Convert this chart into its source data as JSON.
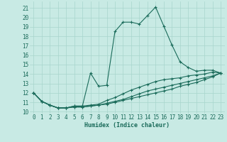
{
  "title": "",
  "xlabel": "Humidex (Indice chaleur)",
  "ylabel": "",
  "background_color": "#c8eae4",
  "grid_color": "#a8d5cc",
  "line_color": "#1a6b5a",
  "x_ticks": [
    0,
    1,
    2,
    3,
    4,
    5,
    6,
    7,
    8,
    9,
    10,
    11,
    12,
    13,
    14,
    15,
    16,
    17,
    18,
    19,
    20,
    21,
    22,
    23
  ],
  "y_ticks": [
    10,
    11,
    12,
    13,
    14,
    15,
    16,
    17,
    18,
    19,
    20,
    21
  ],
  "ylim": [
    9.8,
    21.7
  ],
  "xlim": [
    -0.5,
    23.5
  ],
  "series": [
    {
      "x": [
        0,
        1,
        2,
        3,
        4,
        5,
        6,
        7,
        8,
        9,
        10,
        11,
        12,
        13,
        14,
        15,
        16,
        17,
        18,
        19,
        20,
        21,
        22,
        23
      ],
      "y": [
        12.0,
        11.1,
        10.7,
        10.4,
        10.4,
        10.6,
        10.6,
        14.1,
        12.7,
        12.8,
        18.5,
        19.5,
        19.5,
        19.3,
        20.2,
        21.1,
        19.1,
        17.1,
        15.3,
        14.7,
        14.3,
        14.4,
        14.4,
        14.1
      ]
    },
    {
      "x": [
        0,
        1,
        2,
        3,
        4,
        5,
        6,
        7,
        8,
        9,
        10,
        11,
        12,
        13,
        14,
        15,
        16,
        17,
        18,
        19,
        20,
        21,
        22,
        23
      ],
      "y": [
        12.0,
        11.1,
        10.7,
        10.4,
        10.4,
        10.6,
        10.6,
        10.7,
        10.8,
        11.2,
        11.5,
        11.9,
        12.3,
        12.6,
        12.9,
        13.2,
        13.4,
        13.5,
        13.6,
        13.8,
        13.9,
        14.0,
        14.2,
        14.1
      ]
    },
    {
      "x": [
        0,
        1,
        2,
        3,
        4,
        5,
        6,
        7,
        8,
        9,
        10,
        11,
        12,
        13,
        14,
        15,
        16,
        17,
        18,
        19,
        20,
        21,
        22,
        23
      ],
      "y": [
        12.0,
        11.1,
        10.7,
        10.4,
        10.4,
        10.5,
        10.5,
        10.6,
        10.7,
        10.9,
        11.1,
        11.3,
        11.6,
        11.9,
        12.2,
        12.4,
        12.6,
        12.8,
        13.0,
        13.2,
        13.4,
        13.6,
        13.8,
        14.1
      ]
    },
    {
      "x": [
        0,
        1,
        2,
        3,
        4,
        5,
        6,
        7,
        8,
        9,
        10,
        11,
        12,
        13,
        14,
        15,
        16,
        17,
        18,
        19,
        20,
        21,
        22,
        23
      ],
      "y": [
        12.0,
        11.1,
        10.7,
        10.4,
        10.4,
        10.5,
        10.5,
        10.6,
        10.7,
        10.8,
        11.0,
        11.2,
        11.4,
        11.6,
        11.8,
        12.0,
        12.2,
        12.4,
        12.7,
        12.9,
        13.1,
        13.4,
        13.7,
        14.1
      ]
    }
  ],
  "tick_fontsize": 5.5,
  "xlabel_fontsize": 6.0,
  "line_width": 0.8,
  "marker_size": 2.0
}
